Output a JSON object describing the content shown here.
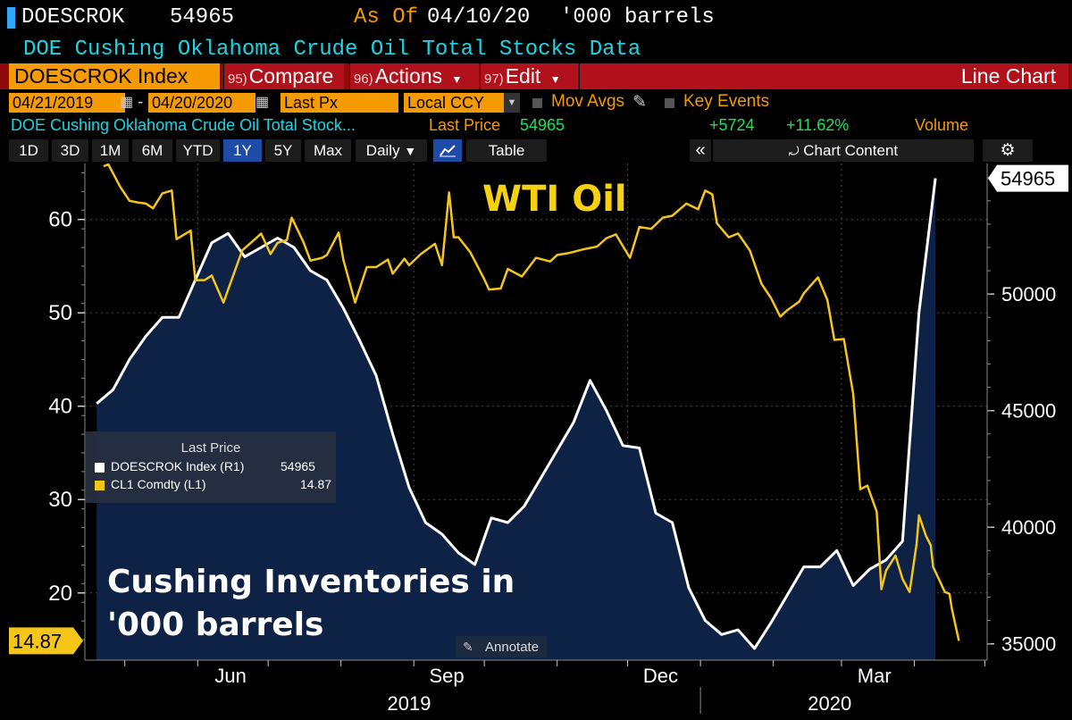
{
  "header": {
    "ticker": "DOESCROK",
    "value": "54965",
    "as_of_label": "As Of",
    "as_of_date": "04/10/20",
    "units": "'000 barrels",
    "subtitle": "DOE Cushing Oklahoma Crude Oil Total Stocks Data"
  },
  "toolbar": {
    "security": "DOESCROK Index",
    "compare_num": "95)",
    "compare": "Compare",
    "actions_num": "96)",
    "actions": "Actions",
    "edit_num": "97)",
    "edit": "Edit",
    "chart_type": "Line Chart"
  },
  "controls": {
    "date_from": "04/21/2019",
    "date_sep": "-",
    "date_to": "04/20/2020",
    "field": "Last Px",
    "currency": "Local CCY",
    "mov_avgs": "Mov Avgs",
    "key_events": "Key Events"
  },
  "info": {
    "name": "DOE Cushing Oklahoma Crude Oil Total Stock...",
    "last_price_label": "Last Price",
    "last_price": "54965",
    "change": "+5724",
    "change_pct": "+11.62%",
    "volume": "Volume"
  },
  "periods": [
    "1D",
    "3D",
    "1M",
    "6M",
    "YTD",
    "1Y",
    "5Y",
    "Max"
  ],
  "selected_period": "1Y",
  "frequency": "Daily",
  "table_label": "Table",
  "chart_content_label": "Chart Content",
  "annotate_label": "Annotate",
  "legend": {
    "title": "Last Price",
    "rows": [
      {
        "name": "DOESCROK Index  (R1)",
        "value": "54965",
        "color": "#ffffff"
      },
      {
        "name": "CL1 Comdty  (L1)",
        "value": "14.87",
        "color": "#f5c518"
      }
    ]
  },
  "colors": {
    "oil": "#f5c518",
    "inventory": "#ffffff",
    "fill": "#0d2245",
    "accent_orange": "#f59a00",
    "toolbar_red": "#b1111a"
  },
  "chart_data": {
    "type": "line",
    "annotations": [
      "WTI Oil",
      "Cushing Inventories in",
      "'000 barrels"
    ],
    "x_tick_labels": [
      "Jun",
      "Sep",
      "Dec",
      "Mar"
    ],
    "year_labels": [
      "2019",
      "2020"
    ],
    "left_axis": {
      "ticks": [
        20,
        30,
        40,
        50,
        60
      ],
      "ylim": [
        12.8,
        66
      ],
      "last_value_label": "14.87"
    },
    "right_axis": {
      "ticks": [
        35000,
        40000,
        45000,
        50000
      ],
      "ylim": [
        34300,
        55600
      ],
      "last_value_label": "54965"
    },
    "series": [
      {
        "name": "CL1 Comdty",
        "axis": "left",
        "points": [
          [
            "2019-04-22",
            65.7
          ],
          [
            "2019-04-24",
            65.9
          ],
          [
            "2019-04-29",
            63.5
          ],
          [
            "2019-05-03",
            62.0
          ],
          [
            "2019-05-07",
            61.8
          ],
          [
            "2019-05-10",
            61.7
          ],
          [
            "2019-05-13",
            61.2
          ],
          [
            "2019-05-17",
            62.8
          ],
          [
            "2019-05-21",
            63.1
          ],
          [
            "2019-05-23",
            57.9
          ],
          [
            "2019-05-29",
            58.8
          ],
          [
            "2019-05-31",
            53.5
          ],
          [
            "2019-06-04",
            53.5
          ],
          [
            "2019-06-07",
            54.0
          ],
          [
            "2019-06-12",
            51.1
          ],
          [
            "2019-06-14",
            52.5
          ],
          [
            "2019-06-20",
            56.7
          ],
          [
            "2019-06-25",
            57.8
          ],
          [
            "2019-06-28",
            58.5
          ],
          [
            "2019-07-02",
            56.3
          ],
          [
            "2019-07-05",
            57.5
          ],
          [
            "2019-07-09",
            57.8
          ],
          [
            "2019-07-11",
            60.2
          ],
          [
            "2019-07-16",
            57.6
          ],
          [
            "2019-07-19",
            55.6
          ],
          [
            "2019-07-24",
            55.9
          ],
          [
            "2019-07-26",
            56.2
          ],
          [
            "2019-07-31",
            58.6
          ],
          [
            "2019-08-02",
            55.7
          ],
          [
            "2019-08-07",
            51.1
          ],
          [
            "2019-08-12",
            54.9
          ],
          [
            "2019-08-16",
            54.9
          ],
          [
            "2019-08-21",
            55.7
          ],
          [
            "2019-08-23",
            54.2
          ],
          [
            "2019-08-28",
            55.8
          ],
          [
            "2019-08-30",
            55.1
          ],
          [
            "2019-09-04",
            56.3
          ],
          [
            "2019-09-10",
            57.4
          ],
          [
            "2019-09-13",
            55.1
          ],
          [
            "2019-09-16",
            62.9
          ],
          [
            "2019-09-18",
            58.1
          ],
          [
            "2019-09-20",
            58.1
          ],
          [
            "2019-09-25",
            56.5
          ],
          [
            "2019-10-01",
            53.6
          ],
          [
            "2019-10-03",
            52.5
          ],
          [
            "2019-10-08",
            52.6
          ],
          [
            "2019-10-11",
            54.7
          ],
          [
            "2019-10-17",
            53.9
          ],
          [
            "2019-10-23",
            55.9
          ],
          [
            "2019-10-29",
            55.5
          ],
          [
            "2019-11-01",
            56.2
          ],
          [
            "2019-11-06",
            56.4
          ],
          [
            "2019-11-12",
            56.8
          ],
          [
            "2019-11-18",
            57.1
          ],
          [
            "2019-11-22",
            58.0
          ],
          [
            "2019-11-26",
            58.4
          ],
          [
            "2019-12-02",
            55.9
          ],
          [
            "2019-12-06",
            59.2
          ],
          [
            "2019-12-11",
            59.0
          ],
          [
            "2019-12-16",
            60.2
          ],
          [
            "2019-12-20",
            60.4
          ],
          [
            "2019-12-26",
            61.7
          ],
          [
            "2019-12-31",
            61.1
          ],
          [
            "2020-01-03",
            63.1
          ],
          [
            "2020-01-06",
            62.7
          ],
          [
            "2020-01-08",
            59.6
          ],
          [
            "2020-01-13",
            58.1
          ],
          [
            "2020-01-17",
            58.5
          ],
          [
            "2020-01-22",
            56.7
          ],
          [
            "2020-01-27",
            53.1
          ],
          [
            "2020-01-31",
            51.6
          ],
          [
            "2020-02-04",
            49.6
          ],
          [
            "2020-02-07",
            50.3
          ],
          [
            "2020-02-12",
            51.2
          ],
          [
            "2020-02-14",
            52.1
          ],
          [
            "2020-02-20",
            53.8
          ],
          [
            "2020-02-24",
            51.4
          ],
          [
            "2020-02-27",
            47.1
          ],
          [
            "2020-03-02",
            47.2
          ],
          [
            "2020-03-06",
            41.3
          ],
          [
            "2020-03-09",
            31.1
          ],
          [
            "2020-03-12",
            31.5
          ],
          [
            "2020-03-16",
            28.7
          ],
          [
            "2020-03-18",
            20.4
          ],
          [
            "2020-03-20",
            22.4
          ],
          [
            "2020-03-24",
            24.0
          ],
          [
            "2020-03-27",
            21.5
          ],
          [
            "2020-03-30",
            20.1
          ],
          [
            "2020-04-02",
            25.3
          ],
          [
            "2020-04-03",
            28.3
          ],
          [
            "2020-04-06",
            26.1
          ],
          [
            "2020-04-08",
            25.1
          ],
          [
            "2020-04-09",
            22.8
          ],
          [
            "2020-04-14",
            20.1
          ],
          [
            "2020-04-16",
            19.9
          ],
          [
            "2020-04-17",
            18.3
          ],
          [
            "2020-04-20",
            14.87
          ]
        ]
      },
      {
        "name": "DOESCROK Index",
        "axis": "right",
        "fill": true,
        "points": [
          [
            "2019-04-19",
            45300
          ],
          [
            "2019-04-26",
            45900
          ],
          [
            "2019-05-03",
            47200
          ],
          [
            "2019-05-10",
            48200
          ],
          [
            "2019-05-17",
            49000
          ],
          [
            "2019-05-24",
            49000
          ],
          [
            "2019-05-31",
            50600
          ],
          [
            "2019-06-07",
            52200
          ],
          [
            "2019-06-14",
            52600
          ],
          [
            "2019-06-21",
            51600
          ],
          [
            "2019-06-28",
            52000
          ],
          [
            "2019-07-05",
            52400
          ],
          [
            "2019-07-12",
            52000
          ],
          [
            "2019-07-19",
            51000
          ],
          [
            "2019-07-26",
            50600
          ],
          [
            "2019-08-02",
            49400
          ],
          [
            "2019-08-09",
            48000
          ],
          [
            "2019-08-16",
            46500
          ],
          [
            "2019-08-23",
            44000
          ],
          [
            "2019-08-30",
            41700
          ],
          [
            "2019-09-06",
            40200
          ],
          [
            "2019-09-13",
            39700
          ],
          [
            "2019-09-20",
            38900
          ],
          [
            "2019-09-27",
            38400
          ],
          [
            "2019-10-04",
            40400
          ],
          [
            "2019-10-11",
            40200
          ],
          [
            "2019-10-18",
            40900
          ],
          [
            "2019-10-25",
            42100
          ],
          [
            "2019-11-01",
            43300
          ],
          [
            "2019-11-08",
            44500
          ],
          [
            "2019-11-15",
            46300
          ],
          [
            "2019-11-22",
            45000
          ],
          [
            "2019-11-29",
            43500
          ],
          [
            "2019-12-06",
            43400
          ],
          [
            "2019-12-13",
            40600
          ],
          [
            "2019-12-20",
            40200
          ],
          [
            "2019-12-27",
            37400
          ],
          [
            "2020-01-03",
            36000
          ],
          [
            "2020-01-10",
            35400
          ],
          [
            "2020-01-17",
            35600
          ],
          [
            "2020-01-24",
            34800
          ],
          [
            "2020-01-31",
            35900
          ],
          [
            "2020-02-07",
            37100
          ],
          [
            "2020-02-14",
            38300
          ],
          [
            "2020-02-21",
            38300
          ],
          [
            "2020-02-28",
            39000
          ],
          [
            "2020-03-06",
            37500
          ],
          [
            "2020-03-13",
            38200
          ],
          [
            "2020-03-20",
            38600
          ],
          [
            "2020-03-27",
            39400
          ],
          [
            "2020-04-03",
            49200
          ],
          [
            "2020-04-10",
            54965
          ]
        ]
      }
    ]
  }
}
